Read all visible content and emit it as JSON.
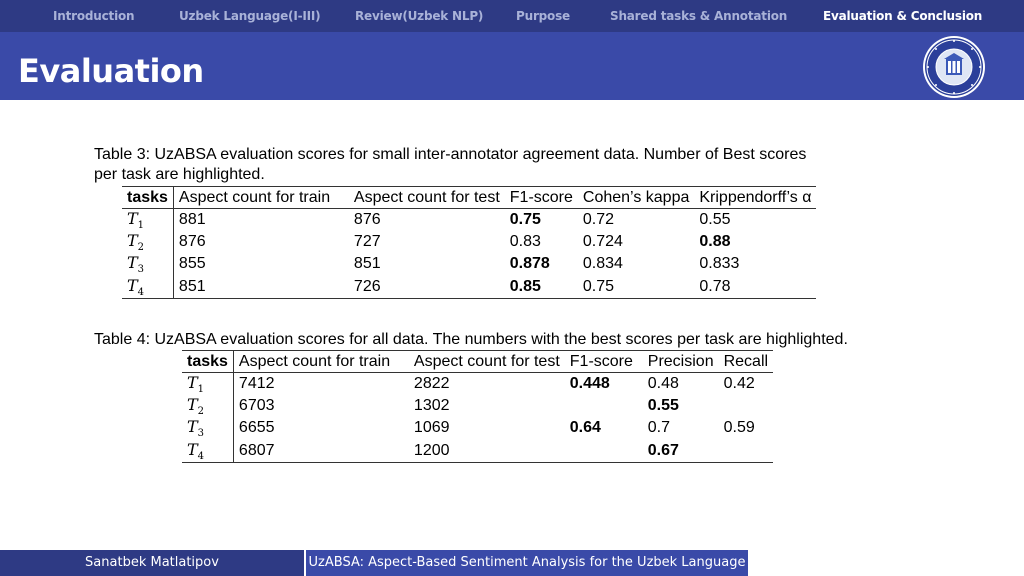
{
  "nav": {
    "items": [
      {
        "label": "Introduction"
      },
      {
        "label": "Uzbek Language(I-III)"
      },
      {
        "label": "Review(Uzbek NLP)"
      },
      {
        "label": "Purpose"
      },
      {
        "label": "Shared tasks & Annotation"
      },
      {
        "label": "Evaluation & Conclusion"
      }
    ],
    "active_index": 5
  },
  "header": {
    "title": "Evaluation",
    "logo_icon": "university-seal-icon"
  },
  "table3": {
    "caption_line1": "Table 3:   UzABSA evaluation scores for small inter-annotator agreement data.  Number of Best scores",
    "caption_line2": "per task are highlighted.",
    "headers": [
      "tasks",
      "Aspect count for train",
      "Aspect count for test",
      "F1-score",
      "Cohen’s kappa",
      "Krippendorff’s α"
    ],
    "rows": [
      {
        "task": "T",
        "sub": "1",
        "train": "881",
        "test": "876",
        "f1": "0.75",
        "kappa": "0.72",
        "alpha": "0.55"
      },
      {
        "task": "T",
        "sub": "2",
        "train": "876",
        "test": "727",
        "f1": "0.83",
        "kappa": "0.724",
        "alpha": "0.88"
      },
      {
        "task": "T",
        "sub": "3",
        "train": "855",
        "test": "851",
        "f1": "0.878",
        "kappa": "0.834",
        "alpha": "0.833"
      },
      {
        "task": "T",
        "sub": "4",
        "train": "851",
        "test": "726",
        "f1": "0.85",
        "kappa": "0.75",
        "alpha": "0.78"
      }
    ]
  },
  "table4": {
    "caption": "Table 4:   UzABSA evaluation scores for all data.  The numbers with the best scores per task are highlighted.",
    "headers": [
      "tasks",
      "Aspect count for train",
      "Aspect count for test",
      "F1-score",
      "Precision",
      "Recall"
    ],
    "rows": [
      {
        "task": "T",
        "sub": "1",
        "train": "7412",
        "test": "2822",
        "f1": "0.448",
        "precision": "0.48",
        "recall": "0.42"
      },
      {
        "task": "T",
        "sub": "2",
        "train": "6703",
        "test": "1302",
        "f1": "",
        "precision": "0.55",
        "recall": ""
      },
      {
        "task": "T",
        "sub": "3",
        "train": "6655",
        "test": "1069",
        "f1": "0.64",
        "precision": "0.7",
        "recall": "0.59"
      },
      {
        "task": "T",
        "sub": "4",
        "train": "6807",
        "test": "1200",
        "f1": "",
        "precision": "0.67",
        "recall": ""
      }
    ]
  },
  "footer": {
    "author": "Sanatbek Matlatipov",
    "talk_title": "UzABSA: Aspect-Based Sentiment Analysis for the Uzbek Language"
  }
}
